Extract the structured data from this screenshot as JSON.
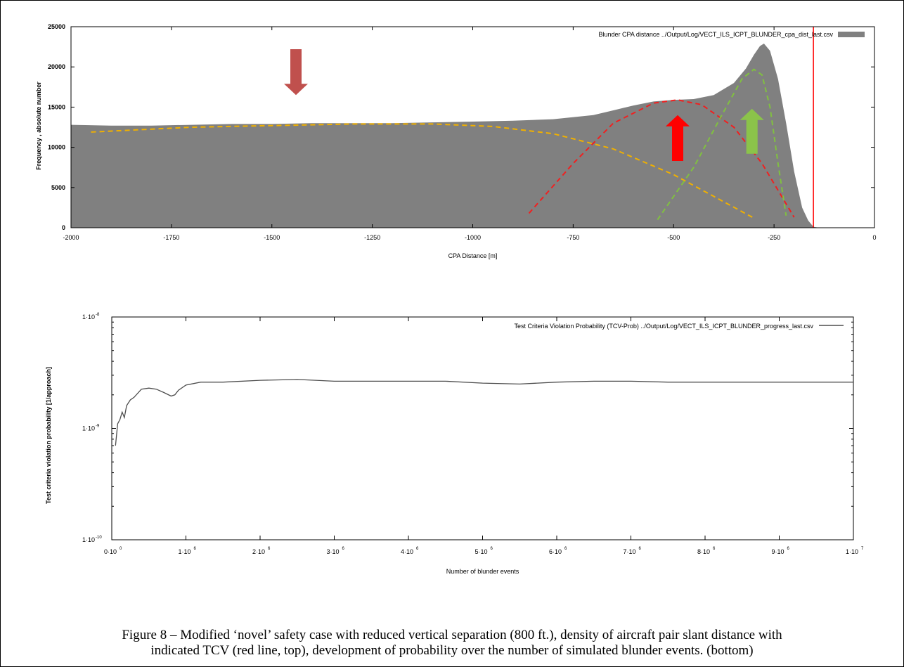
{
  "chart_data": [
    {
      "type": "area",
      "legend": "Blunder CPA distance ../Output/Log/VECT_ILS_ICPT_BLUNDER_cpa_dist_last.csv",
      "xlabel": "CPA Distance [m]",
      "ylabel": "Frequency , absolute number",
      "xlim": [
        -2000,
        0
      ],
      "ylim": [
        0,
        25000
      ],
      "xticks": [
        "-2000",
        "-1750",
        "-1500",
        "-1250",
        "-1000",
        "-750",
        "-500",
        "-250",
        "0"
      ],
      "yticks": [
        "0",
        "5000",
        "10000",
        "15000",
        "20000",
        "25000"
      ],
      "legend_position": "top-right",
      "histogram": {
        "x": [
          -2000,
          -1900,
          -1800,
          -1700,
          -1600,
          -1500,
          -1400,
          -1300,
          -1200,
          -1100,
          -1000,
          -900,
          -800,
          -700,
          -650,
          -600,
          -550,
          -500,
          -450,
          -400,
          -350,
          -320,
          -300,
          -285,
          -275,
          -260,
          -240,
          -220,
          -200,
          -180,
          -165,
          -155,
          -150,
          -140,
          -130
        ],
        "y": [
          12800,
          12700,
          12700,
          12800,
          12900,
          12900,
          13000,
          13000,
          13000,
          13100,
          13200,
          13300,
          13500,
          14000,
          14600,
          15200,
          15700,
          15900,
          16000,
          16500,
          18000,
          19800,
          21500,
          22600,
          22900,
          22000,
          18500,
          13000,
          7000,
          2500,
          900,
          300,
          100,
          30,
          0
        ],
        "color": "#808080"
      },
      "tcv_line_x": -152,
      "overlays": [
        {
          "x": [
            -1950,
            -1700,
            -1500,
            -1300,
            -1100,
            -950,
            -800,
            -650,
            -500,
            -400,
            -300
          ],
          "y": [
            11900,
            12500,
            12700,
            12900,
            12900,
            12600,
            11700,
            9800,
            6600,
            3900,
            1200
          ],
          "color": "#f0b000"
        },
        {
          "x": [
            -860,
            -750,
            -650,
            -550,
            -490,
            -430,
            -350,
            -280,
            -200
          ],
          "y": [
            1800,
            8000,
            13000,
            15500,
            15900,
            15300,
            12500,
            8000,
            1300
          ],
          "color": "#f02020"
        },
        {
          "x": [
            -540,
            -450,
            -380,
            -330,
            -300,
            -280,
            -260,
            -240,
            -220
          ],
          "y": [
            1000,
            7500,
            14000,
            18500,
            19700,
            19000,
            15000,
            8000,
            1500
          ],
          "color": "#80c040"
        }
      ],
      "arrows": [
        {
          "direction": "down",
          "x": -1440,
          "y_top": 22200,
          "y_bottom": 16500,
          "color": "#c0504d"
        },
        {
          "direction": "up",
          "x": -490,
          "y_top": 14000,
          "y_bottom": 8300,
          "color": "#ff0000"
        },
        {
          "direction": "up",
          "x": -305,
          "y_top": 14800,
          "y_bottom": 9200,
          "color": "#8bc34a"
        }
      ]
    },
    {
      "type": "line",
      "legend": "Test Criteria Violation Probability (TCV-Prob) ../Output/Log/VECT_ILS_ICPT_BLUNDER_progress_last.csv",
      "xlabel": "Number of blunder events",
      "ylabel": "Test criteria violation probability [1/approach]",
      "xlim": [
        0,
        10000000
      ],
      "ylim": [
        1e-10,
        1e-08
      ],
      "log_y": true,
      "yticks": [
        {
          "mantissa": "1·10",
          "exp": "-8"
        },
        {
          "mantissa": "1·10",
          "exp": "-9"
        },
        {
          "mantissa": "1·10",
          "exp": "-10"
        }
      ],
      "xticks": [
        {
          "mantissa": "0·10",
          "exp": "0"
        },
        {
          "mantissa": "1·10",
          "exp": "6"
        },
        {
          "mantissa": "2·10",
          "exp": "6"
        },
        {
          "mantissa": "3·10",
          "exp": "6"
        },
        {
          "mantissa": "4·10",
          "exp": "6"
        },
        {
          "mantissa": "5·10",
          "exp": "6"
        },
        {
          "mantissa": "6·10",
          "exp": "6"
        },
        {
          "mantissa": "7·10",
          "exp": "6"
        },
        {
          "mantissa": "8·10",
          "exp": "6"
        },
        {
          "mantissa": "9·10",
          "exp": "6"
        },
        {
          "mantissa": "1·10",
          "exp": "7"
        }
      ],
      "legend_position": "top-right",
      "x": [
        50000,
        80000,
        110000,
        140000,
        170000,
        200000,
        250000,
        300000,
        400000,
        500000,
        600000,
        700000,
        800000,
        850000,
        900000,
        1000000,
        1200000,
        1500000,
        2000000,
        2500000,
        3000000,
        3500000,
        4000000,
        4500000,
        5000000,
        5500000,
        6000000,
        6500000,
        7000000,
        7500000,
        8000000,
        9000000,
        10000000
      ],
      "y": [
        7e-10,
        1.1e-09,
        1.2e-09,
        1.4e-09,
        1.25e-09,
        1.6e-09,
        1.8e-09,
        1.9e-09,
        2.25e-09,
        2.3e-09,
        2.25e-09,
        2.1e-09,
        1.95e-09,
        2e-09,
        2.2e-09,
        2.45e-09,
        2.6e-09,
        2.6e-09,
        2.7e-09,
        2.75e-09,
        2.65e-09,
        2.65e-09,
        2.65e-09,
        2.65e-09,
        2.55e-09,
        2.5e-09,
        2.6e-09,
        2.65e-09,
        2.65e-09,
        2.6e-09,
        2.6e-09,
        2.6e-09,
        2.6e-09
      ],
      "color": "#4d4d4d"
    }
  ],
  "caption_line1": "Figure 8 – Modified ‘novel’ safety case with reduced vertical separation (800 ft.), density of aircraft pair slant distance with",
  "caption_line2": "indicated TCV (red line, top), development of probability over the number of simulated blunder events. (bottom)"
}
